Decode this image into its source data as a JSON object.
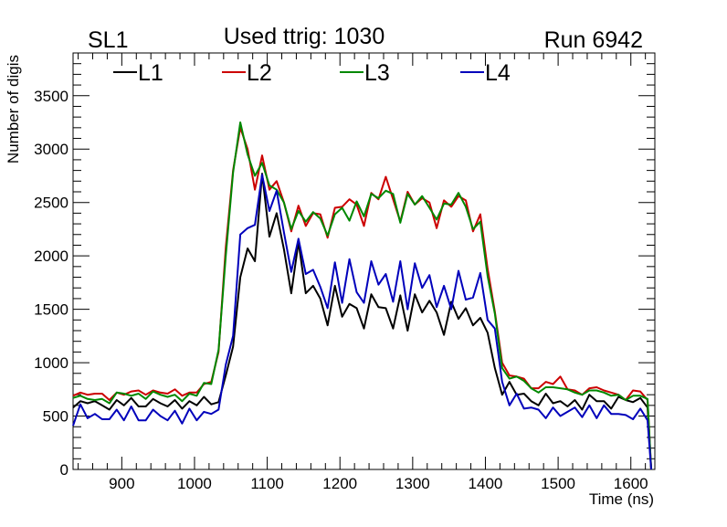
{
  "header": {
    "left_label": "SL1",
    "center_label": "Used ttrig: 1030",
    "right_label": "Run 6942"
  },
  "chart_data": {
    "type": "line",
    "title": "Used ttrig: 1030",
    "xlabel": "Time (ns)",
    "ylabel": "Number of digis",
    "xlim": [
      833,
      1633
    ],
    "ylim": [
      0,
      3900
    ],
    "grid": false,
    "legend_placement": "top-left",
    "x_ticks": [
      900,
      1000,
      1100,
      1200,
      1300,
      1400,
      1500,
      1600
    ],
    "y_ticks": [
      0,
      500,
      1000,
      1500,
      2000,
      2500,
      3000,
      3500
    ],
    "x": [
      833,
      843,
      853,
      863,
      873,
      883,
      893,
      903,
      913,
      923,
      933,
      943,
      953,
      963,
      973,
      983,
      993,
      1003,
      1013,
      1023,
      1033,
      1043,
      1053,
      1063,
      1073,
      1083,
      1093,
      1103,
      1113,
      1123,
      1133,
      1143,
      1153,
      1163,
      1173,
      1183,
      1193,
      1203,
      1213,
      1223,
      1233,
      1243,
      1253,
      1263,
      1273,
      1283,
      1293,
      1303,
      1313,
      1323,
      1333,
      1343,
      1353,
      1363,
      1373,
      1383,
      1393,
      1403,
      1413,
      1423,
      1433,
      1443,
      1453,
      1463,
      1473,
      1483,
      1493,
      1503,
      1513,
      1523,
      1533,
      1543,
      1553,
      1563,
      1573,
      1583,
      1593,
      1603,
      1613,
      1623,
      1628
    ],
    "series": [
      {
        "name": "L1",
        "color": "#000000",
        "values": [
          580,
          640,
          620,
          640,
          600,
          560,
          650,
          600,
          670,
          590,
          590,
          660,
          620,
          590,
          650,
          570,
          640,
          600,
          680,
          610,
          630,
          880,
          1150,
          1800,
          2070,
          1950,
          2770,
          2180,
          2400,
          2060,
          1650,
          2130,
          1650,
          1720,
          1600,
          1350,
          1720,
          1430,
          1550,
          1510,
          1320,
          1640,
          1520,
          1510,
          1320,
          1630,
          1300,
          1640,
          1470,
          1580,
          1470,
          1260,
          1570,
          1410,
          1510,
          1350,
          1420,
          1280,
          950,
          700,
          820,
          700,
          710,
          640,
          600,
          710,
          620,
          640,
          590,
          650,
          560,
          700,
          640,
          640,
          570,
          680,
          650,
          630,
          670,
          580,
          0
        ]
      },
      {
        "name": "L2",
        "color": "#cc0000",
        "values": [
          690,
          720,
          700,
          710,
          710,
          650,
          720,
          700,
          730,
          740,
          700,
          740,
          720,
          710,
          750,
          690,
          720,
          720,
          800,
          820,
          1100,
          2080,
          2800,
          3200,
          3000,
          2620,
          2940,
          2620,
          2700,
          2500,
          2230,
          2470,
          2280,
          2400,
          2390,
          2170,
          2450,
          2460,
          2530,
          2480,
          2280,
          2590,
          2530,
          2740,
          2530,
          2320,
          2600,
          2480,
          2540,
          2500,
          2260,
          2520,
          2460,
          2560,
          2520,
          2230,
          2390,
          1880,
          1480,
          1000,
          880,
          870,
          850,
          760,
          760,
          820,
          800,
          870,
          750,
          740,
          700,
          760,
          770,
          740,
          720,
          700,
          650,
          740,
          730,
          650,
          0
        ]
      },
      {
        "name": "L3",
        "color": "#008800",
        "values": [
          670,
          690,
          660,
          650,
          660,
          620,
          720,
          710,
          690,
          710,
          660,
          730,
          700,
          680,
          700,
          640,
          710,
          690,
          810,
          800,
          1120,
          2000,
          2780,
          3250,
          2950,
          2750,
          2870,
          2660,
          2620,
          2500,
          2250,
          2420,
          2320,
          2410,
          2350,
          2190,
          2390,
          2450,
          2330,
          2510,
          2370,
          2580,
          2540,
          2610,
          2580,
          2310,
          2580,
          2480,
          2560,
          2450,
          2340,
          2490,
          2480,
          2590,
          2460,
          2250,
          2320,
          1810,
          1460,
          950,
          850,
          870,
          830,
          760,
          720,
          770,
          770,
          760,
          750,
          720,
          700,
          740,
          740,
          720,
          690,
          700,
          650,
          690,
          690,
          660,
          0
        ]
      },
      {
        "name": "L4",
        "color": "#0000bb",
        "values": [
          410,
          610,
          480,
          520,
          470,
          470,
          560,
          460,
          590,
          460,
          460,
          560,
          500,
          460,
          550,
          430,
          570,
          460,
          540,
          520,
          560,
          980,
          1250,
          2200,
          2260,
          2290,
          2760,
          2420,
          2610,
          2220,
          1850,
          2160,
          1830,
          1870,
          1710,
          1510,
          1940,
          1560,
          1970,
          1660,
          1560,
          1950,
          1730,
          1830,
          1570,
          1950,
          1500,
          1930,
          1700,
          1820,
          1520,
          1720,
          1500,
          1860,
          1590,
          1610,
          1840,
          1400,
          1320,
          820,
          600,
          710,
          570,
          580,
          560,
          480,
          580,
          500,
          540,
          580,
          490,
          600,
          480,
          600,
          520,
          520,
          510,
          470,
          570,
          460,
          0
        ]
      }
    ]
  }
}
